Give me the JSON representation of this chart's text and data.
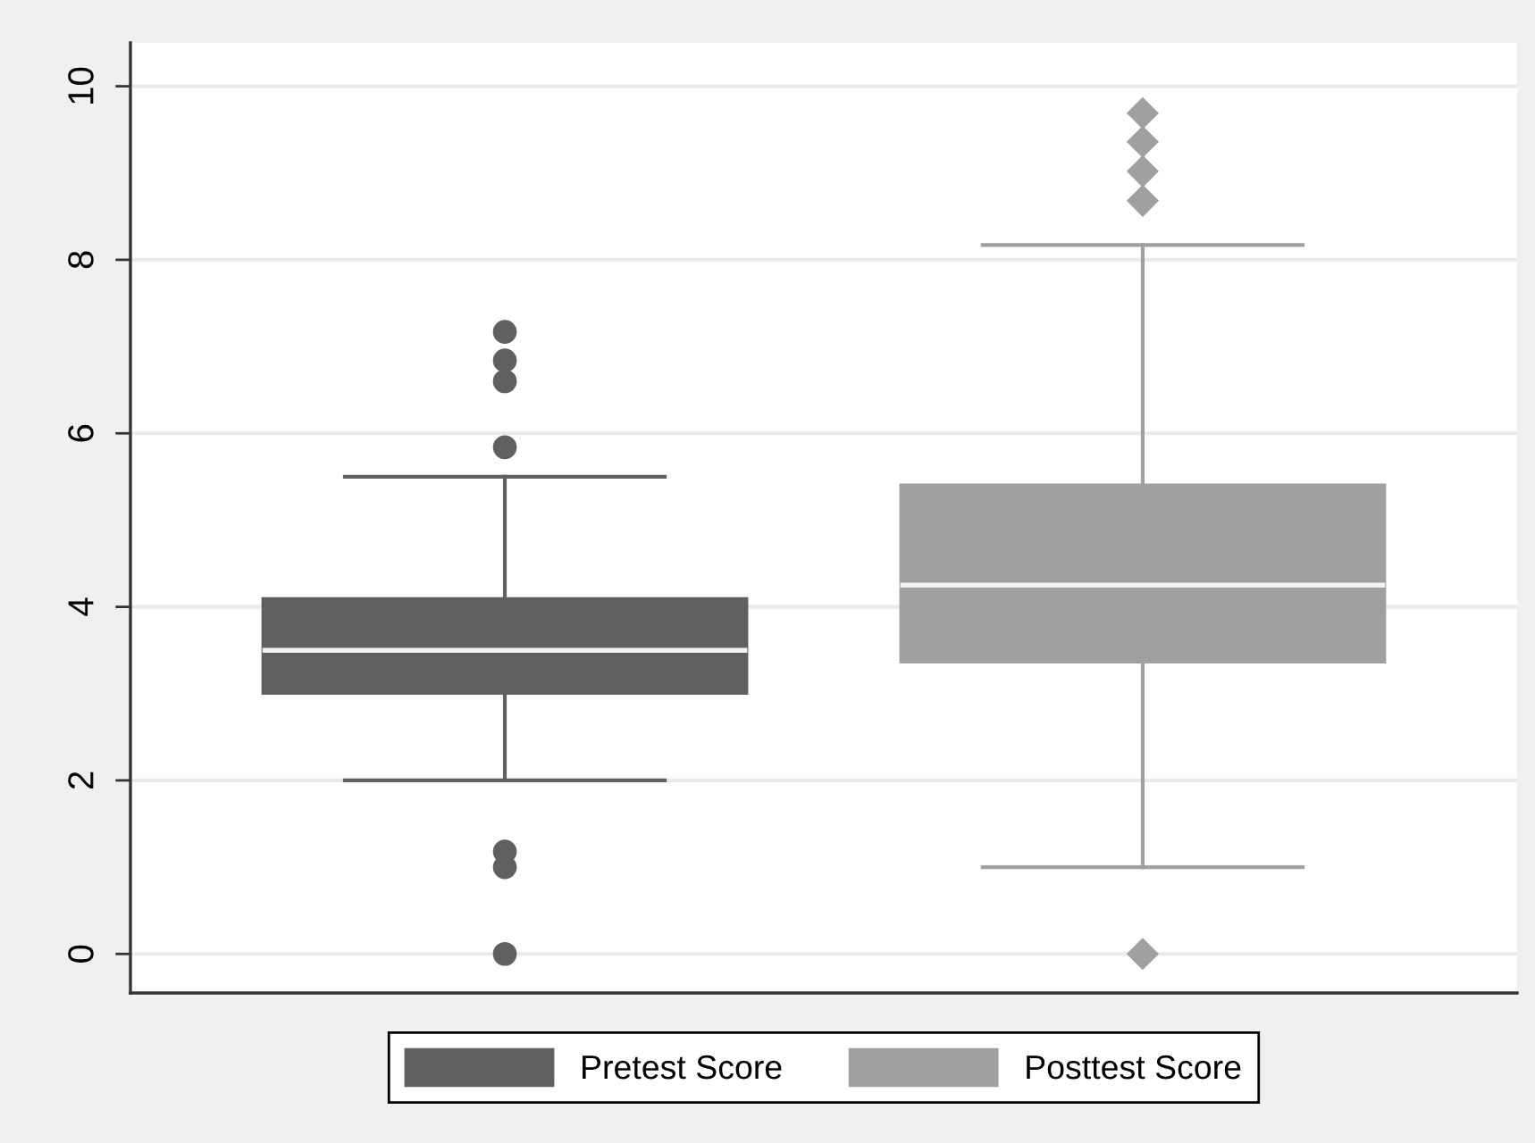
{
  "chart_data": {
    "type": "box",
    "categories": [
      null
    ],
    "series": [
      {
        "name": "Pretest Score",
        "color": "#5f6060",
        "marker": "circle",
        "boxes": [
          {
            "low": 2.0,
            "q1": 3.0,
            "median": 3.5,
            "q3": 4.1,
            "high": 5.5,
            "outliers": [
              7.17,
              6.84,
              6.6,
              5.84,
              1.18,
              1.0,
              0
            ]
          }
        ]
      },
      {
        "name": "Posttest Score",
        "color": "#a0a0a0",
        "marker": "diamond",
        "boxes": [
          {
            "low": 1.0,
            "q1": 3.36,
            "median": 4.25,
            "q3": 5.41,
            "high": 8.17,
            "outliers": [
              9.69,
              9.36,
              9.02,
              8.68,
              0
            ]
          }
        ]
      }
    ],
    "ylim": [
      -0.45,
      10.5
    ],
    "yticks": [
      0,
      2,
      4,
      6,
      8,
      10
    ],
    "grid": "y",
    "legend": "bottom",
    "tick_labels": "y"
  }
}
